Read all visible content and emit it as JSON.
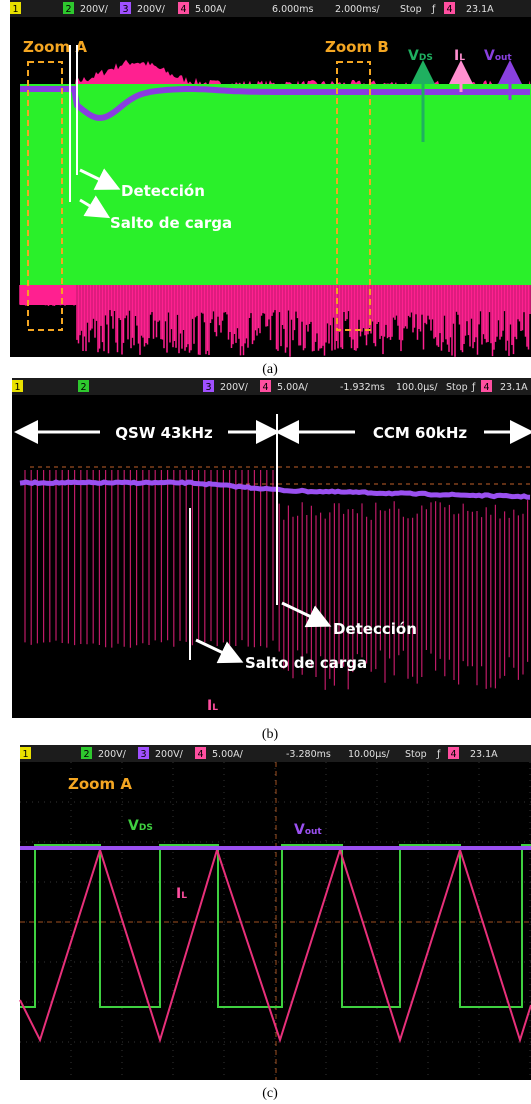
{
  "panels": [
    {
      "header": [
        "1",
        "2",
        "200V/",
        "3",
        "200V/",
        "4",
        "5.00A/",
        "6.000ms",
        "2.000ms/",
        "Stop",
        "ƒ",
        "4",
        "23.1A"
      ],
      "annotations": {
        "zoom_a": "Zoom A",
        "zoom_b": "Zoom B",
        "vds": {
          "main": "V",
          "sub": "DS"
        },
        "il": {
          "main": "I",
          "sub": "L"
        },
        "vout": {
          "main": "V",
          "sub": "out"
        },
        "detection": "Detección",
        "load_step": "Salto de carga"
      },
      "caption": "(a)"
    },
    {
      "header": [
        "1",
        "2",
        "3",
        "200V/",
        "4",
        "5.00A/",
        "-1.932ms",
        "100.0µs/",
        "Stop",
        "ƒ",
        "4",
        "23.1A"
      ],
      "annotations": {
        "qsw": "QSW 43kHz",
        "ccm": "CCM 60kHz",
        "detection": "Detección",
        "load_step": "Salto de carga",
        "il": {
          "main": "I",
          "sub": "L"
        }
      },
      "caption": "(b)"
    },
    {
      "header": [
        "1",
        "2",
        "200V/",
        "3",
        "200V/",
        "4",
        "5.00A/",
        "-3.280ms",
        "10.00µs/",
        "Stop",
        "ƒ",
        "4",
        "23.1A"
      ],
      "annotations": {
        "zoom_a": "Zoom A",
        "vds": {
          "main": "V",
          "sub": "DS"
        },
        "vout": {
          "main": "V",
          "sub": "out"
        },
        "il": {
          "main": "I",
          "sub": "L"
        }
      },
      "caption": "(c)"
    }
  ]
}
